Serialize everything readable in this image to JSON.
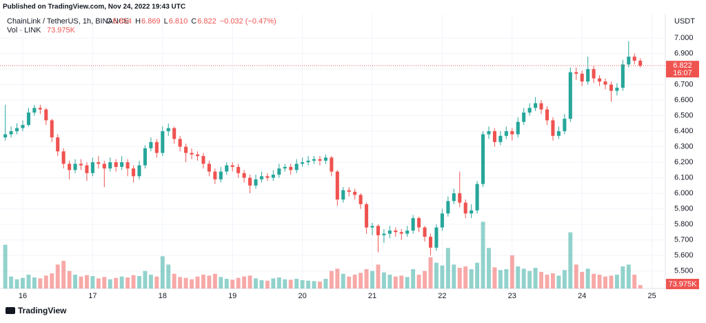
{
  "header": {
    "published": "Published on TradingView.com, Nov 24, 2022 19:43 UTC",
    "symbol": "ChainLink / TetherUS, 1h, BINANCE",
    "ohlc": [
      [
        "O",
        "6.854"
      ],
      [
        "H",
        "6.869"
      ],
      [
        "L",
        "6.810"
      ],
      [
        "C",
        "6.822"
      ]
    ],
    "change": "−0.032 (−0.47%)",
    "vol_label": "Vol · LINK",
    "vol_value": "73.975K"
  },
  "footer": {
    "brand": "TradingView"
  },
  "price_marker": {
    "countdown": "16:07"
  },
  "chart_data": {
    "type": "candlestick",
    "y_axis_label": "USDT",
    "up_color": "#26a69a",
    "down_color": "#ef5350",
    "grid": true,
    "open": [
      6.36,
      6.38,
      6.4,
      6.42,
      6.44,
      6.52,
      6.55,
      6.54,
      6.47,
      6.36,
      6.27,
      6.19,
      6.15,
      6.19,
      6.18,
      6.13,
      6.2,
      6.19,
      6.16,
      6.2,
      6.17,
      6.2,
      6.16,
      6.11,
      6.18,
      6.29,
      6.33,
      6.26,
      6.4,
      6.42,
      6.35,
      6.3,
      6.26,
      6.25,
      6.24,
      6.19,
      6.14,
      6.09,
      6.14,
      6.18,
      6.17,
      6.13,
      6.1,
      6.05,
      6.09,
      6.11,
      6.1,
      6.12,
      6.16,
      6.17,
      6.15,
      6.19,
      6.2,
      6.21,
      6.22,
      6.21,
      6.23,
      6.14,
      5.96,
      6.02,
      6.01,
      5.99,
      5.93,
      5.78,
      5.79,
      5.73,
      5.74,
      5.76,
      5.75,
      5.74,
      5.76,
      5.84,
      5.78,
      5.72,
      5.65,
      5.78,
      5.87,
      5.95,
      6.0,
      5.94,
      5.87,
      5.89,
      6.06,
      6.38,
      6.4,
      6.33,
      6.37,
      6.4,
      6.38,
      6.46,
      6.52,
      6.55,
      6.58,
      6.54,
      6.47,
      6.37,
      6.4,
      6.48,
      6.78,
      6.77,
      6.72,
      6.8,
      6.74,
      6.72,
      6.7,
      6.66,
      6.68,
      6.83,
      6.88,
      6.854
    ],
    "high": [
      6.57,
      6.43,
      6.45,
      6.47,
      6.55,
      6.57,
      6.57,
      6.55,
      6.48,
      6.38,
      6.29,
      6.21,
      6.22,
      6.22,
      6.2,
      6.23,
      6.24,
      6.21,
      6.23,
      6.22,
      6.24,
      6.22,
      6.18,
      6.21,
      6.31,
      6.36,
      6.35,
      6.43,
      6.45,
      6.43,
      6.37,
      6.32,
      6.29,
      6.27,
      6.26,
      6.21,
      6.16,
      6.17,
      6.2,
      6.2,
      6.19,
      6.15,
      6.12,
      6.12,
      6.14,
      6.13,
      6.15,
      6.19,
      6.19,
      6.19,
      6.22,
      6.23,
      6.24,
      6.24,
      6.24,
      6.25,
      6.24,
      6.15,
      6.04,
      6.04,
      6.03,
      6.0,
      5.94,
      5.81,
      5.8,
      5.77,
      5.79,
      5.78,
      5.77,
      5.79,
      5.86,
      5.85,
      5.79,
      5.74,
      5.8,
      5.9,
      5.98,
      6.03,
      6.14,
      5.96,
      5.93,
      6.08,
      6.4,
      6.43,
      6.42,
      6.4,
      6.43,
      6.42,
      6.49,
      6.55,
      6.58,
      6.62,
      6.6,
      6.56,
      6.49,
      6.43,
      6.51,
      6.81,
      6.81,
      6.79,
      6.88,
      6.82,
      6.76,
      6.74,
      6.72,
      6.71,
      6.86,
      6.98,
      6.9,
      6.869
    ],
    "low": [
      6.34,
      6.36,
      6.38,
      6.4,
      6.43,
      6.5,
      6.51,
      6.44,
      6.33,
      6.24,
      6.16,
      6.09,
      6.13,
      6.15,
      6.08,
      6.11,
      6.16,
      6.04,
      6.14,
      6.14,
      6.15,
      6.11,
      6.07,
      6.09,
      6.16,
      6.27,
      6.23,
      6.24,
      6.37,
      6.32,
      6.27,
      6.2,
      6.22,
      6.21,
      6.16,
      6.11,
      6.06,
      6.07,
      6.12,
      6.14,
      6.1,
      6.07,
      6.0,
      6.03,
      6.07,
      6.08,
      6.08,
      6.1,
      6.14,
      6.12,
      6.13,
      6.17,
      6.18,
      6.19,
      6.18,
      6.19,
      6.11,
      5.92,
      5.94,
      5.98,
      5.96,
      5.9,
      5.74,
      5.73,
      5.62,
      5.68,
      5.71,
      5.72,
      5.7,
      5.72,
      5.74,
      5.75,
      5.69,
      5.6,
      5.63,
      5.76,
      5.85,
      5.93,
      5.91,
      5.84,
      5.84,
      5.87,
      6.04,
      6.35,
      6.3,
      6.31,
      6.35,
      6.34,
      6.36,
      6.44,
      6.5,
      6.53,
      6.51,
      6.44,
      6.34,
      6.35,
      6.38,
      6.46,
      6.73,
      6.69,
      6.7,
      6.71,
      6.69,
      6.67,
      6.59,
      6.63,
      6.66,
      6.81,
      6.83,
      6.81
    ],
    "close": [
      6.38,
      6.4,
      6.42,
      6.44,
      6.52,
      6.55,
      6.54,
      6.47,
      6.36,
      6.27,
      6.19,
      6.15,
      6.19,
      6.18,
      6.13,
      6.2,
      6.19,
      6.16,
      6.2,
      6.17,
      6.2,
      6.16,
      6.11,
      6.18,
      6.29,
      6.33,
      6.26,
      6.4,
      6.42,
      6.35,
      6.3,
      6.26,
      6.25,
      6.24,
      6.19,
      6.14,
      6.09,
      6.14,
      6.18,
      6.17,
      6.13,
      6.1,
      6.05,
      6.09,
      6.11,
      6.1,
      6.12,
      6.16,
      6.17,
      6.15,
      6.19,
      6.2,
      6.21,
      6.22,
      6.21,
      6.23,
      6.14,
      5.96,
      6.02,
      6.01,
      5.99,
      5.93,
      5.78,
      5.79,
      5.73,
      5.74,
      5.76,
      5.75,
      5.74,
      5.76,
      5.84,
      5.78,
      5.72,
      5.65,
      5.78,
      5.87,
      5.95,
      6.0,
      5.94,
      5.87,
      5.89,
      6.06,
      6.38,
      6.4,
      6.33,
      6.37,
      6.4,
      6.38,
      6.46,
      6.52,
      6.55,
      6.58,
      6.54,
      6.47,
      6.37,
      6.4,
      6.48,
      6.78,
      6.77,
      6.72,
      6.8,
      6.74,
      6.72,
      6.7,
      6.66,
      6.68,
      6.83,
      6.88,
      6.854,
      6.822
    ],
    "volume": [
      950000,
      260000,
      200000,
      230000,
      300000,
      240000,
      220000,
      280000,
      330000,
      520000,
      600000,
      380000,
      300000,
      260000,
      290000,
      270000,
      220000,
      250000,
      200000,
      230000,
      260000,
      240000,
      290000,
      270000,
      380000,
      300000,
      260000,
      700000,
      520000,
      320000,
      250000,
      230000,
      200000,
      260000,
      300000,
      280000,
      320000,
      250000,
      210000,
      190000,
      230000,
      260000,
      280000,
      220000,
      180000,
      170000,
      220000,
      240000,
      200000,
      190000,
      210000,
      180000,
      170000,
      160000,
      150000,
      210000,
      380000,
      430000,
      320000,
      260000,
      300000,
      340000,
      420000,
      380000,
      520000,
      350000,
      300000,
      260000,
      280000,
      250000,
      420000,
      300000,
      380000,
      680000,
      560000,
      500000,
      880000,
      520000,
      450000,
      480000,
      420000,
      560000,
      1450000,
      880000,
      460000,
      400000,
      420000,
      720000,
      480000,
      430000,
      380000,
      450000,
      360000,
      300000,
      330000,
      280000,
      400000,
      1220000,
      520000,
      360000,
      430000,
      320000,
      300000,
      260000,
      280000,
      300000,
      480000,
      520000,
      300000,
      73975
    ],
    "volume_lim": [
      0,
      1500000
    ],
    "xlim": [
      -0.905,
      113.295
    ],
    "xticks": [
      {
        "value": 3,
        "label": "16"
      },
      {
        "value": 15,
        "label": "17"
      },
      {
        "value": 27,
        "label": "18"
      },
      {
        "value": 39,
        "label": "19"
      },
      {
        "value": 51,
        "label": "20"
      },
      {
        "value": 63,
        "label": "21"
      },
      {
        "value": 75,
        "label": "22"
      },
      {
        "value": 87,
        "label": "23"
      },
      {
        "value": 99,
        "label": "24"
      },
      {
        "value": 111,
        "label": "25"
      }
    ],
    "ylim": [
      5.387,
      7.156
    ],
    "yticks": [
      {
        "value": 5.5,
        "label": "5.500"
      },
      {
        "value": 5.6,
        "label": "5.600"
      },
      {
        "value": 5.7,
        "label": "5.700"
      },
      {
        "value": 5.8,
        "label": "5.800"
      },
      {
        "value": 5.9,
        "label": "5.900"
      },
      {
        "value": 6.0,
        "label": "6.000"
      },
      {
        "value": 6.1,
        "label": "6.100"
      },
      {
        "value": 6.2,
        "label": "6.200"
      },
      {
        "value": 6.3,
        "label": "6.300"
      },
      {
        "value": 6.4,
        "label": "6.400"
      },
      {
        "value": 6.5,
        "label": "6.500"
      },
      {
        "value": 6.6,
        "label": "6.600"
      },
      {
        "value": 6.7,
        "label": "6.700"
      },
      {
        "value": 6.8,
        "label": "6.800"
      },
      {
        "value": 6.9,
        "label": "6.900"
      },
      {
        "value": 7.0,
        "label": "7.000"
      }
    ]
  }
}
